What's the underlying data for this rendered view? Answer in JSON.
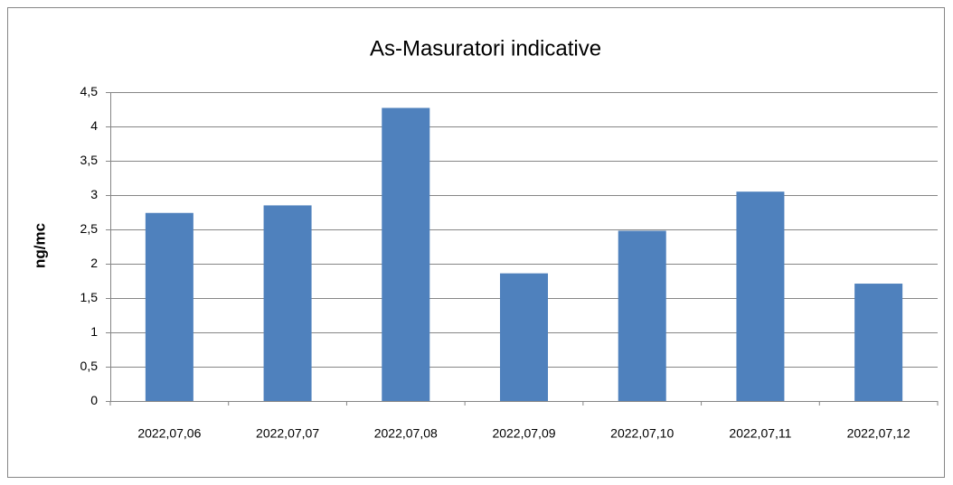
{
  "chart_data": {
    "type": "bar",
    "title": "As-Masuratori indicative",
    "y_label": "ng/mc",
    "categories": [
      "2022,07,06",
      "2022,07,07",
      "2022,07,08",
      "2022,07,09",
      "2022,07,10",
      "2022,07,11",
      "2022,07,12"
    ],
    "values": [
      2.74,
      2.85,
      4.27,
      1.86,
      2.48,
      3.05,
      1.71
    ],
    "color": "#4f81bd",
    "ylim": [
      0,
      4.5
    ],
    "yticks": [
      0,
      {
        "value": 0.5,
        "label": "0,5"
      },
      1,
      {
        "value": 1.5,
        "label": "1,5"
      },
      2,
      {
        "value": 2.5,
        "label": "2,5"
      },
      3,
      {
        "value": 3.5,
        "label": "3,5"
      },
      4,
      {
        "value": 4.5,
        "label": "4,5"
      }
    ],
    "grid": true
  }
}
